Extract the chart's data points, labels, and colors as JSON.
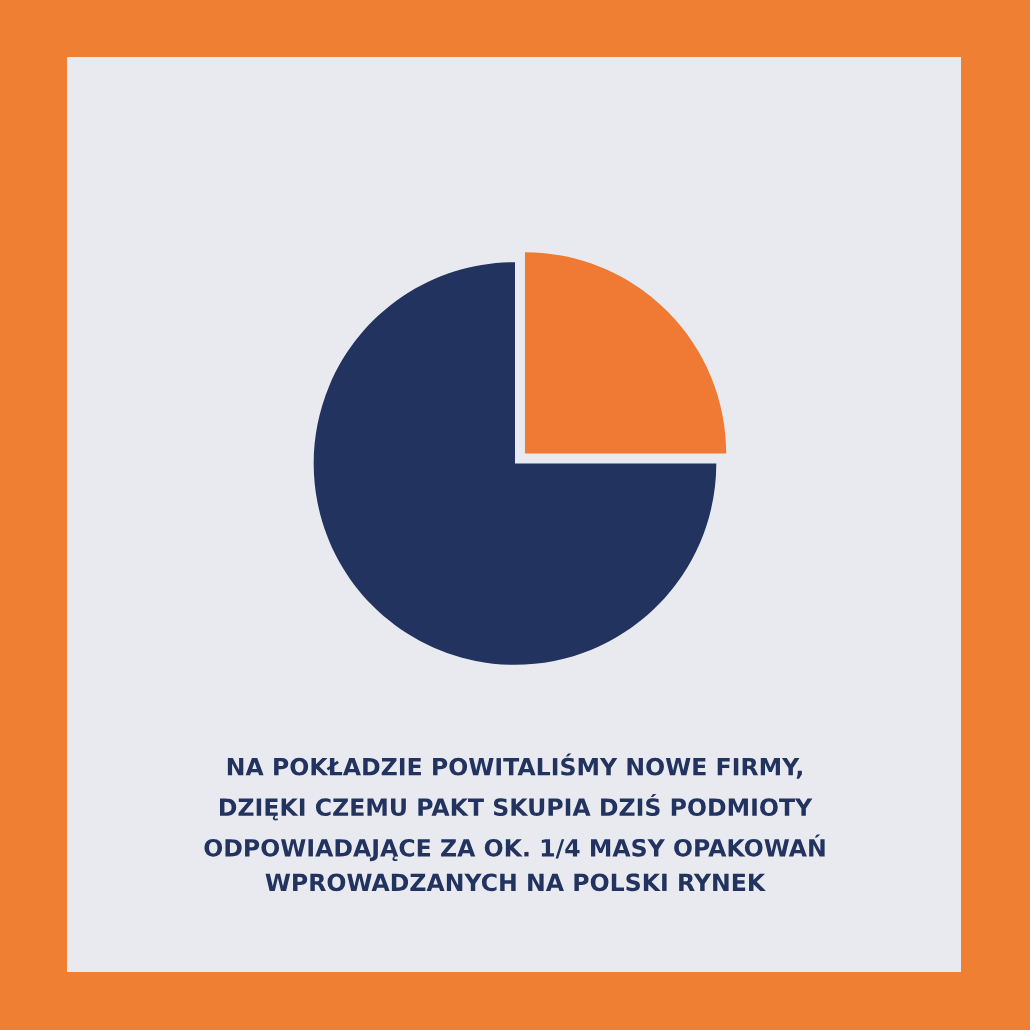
{
  "chart_data": {
    "type": "pie",
    "categories": [
      null,
      null
    ],
    "values": [
      25,
      75
    ],
    "colors": [
      "#f07a33",
      "#22335f"
    ],
    "annotations": [
      "NA POKŁADZIE POWITALIŚMY NOWE FIRMY,\nDZIĘKI CZEMU PAKT SKUPIA DZIŚ PODMIOTY\nODPOWIADAJĄCE ZA OK. 1/4 MASY OPAKOWAŃ\nWPROWADZANYCH NA POLSKI RYNEK"
    ]
  }
}
